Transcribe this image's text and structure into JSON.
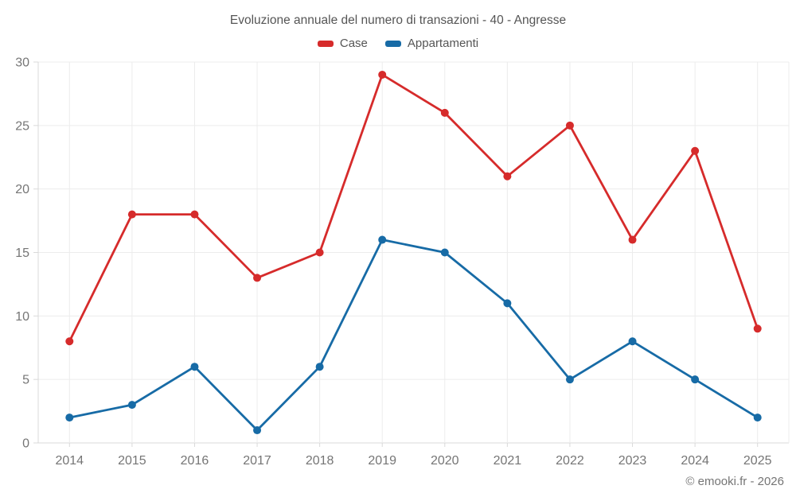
{
  "page": {
    "footer": "© emooki.fr - 2026"
  },
  "chart_data": {
    "type": "line",
    "title": "Evoluzione annuale del numero di transazioni - 40 - Angresse",
    "categories": [
      "2014",
      "2015",
      "2016",
      "2017",
      "2018",
      "2019",
      "2020",
      "2021",
      "2022",
      "2023",
      "2024",
      "2025"
    ],
    "series": [
      {
        "name": "Case",
        "color": "#d62b2b",
        "values": [
          8,
          18,
          18,
          13,
          15,
          29,
          26,
          21,
          25,
          16,
          23,
          9
        ]
      },
      {
        "name": "Appartamenti",
        "color": "#176ba6",
        "values": [
          2,
          3,
          6,
          1,
          6,
          16,
          15,
          11,
          5,
          8,
          5,
          2
        ]
      }
    ],
    "xlabel": "",
    "ylabel": "",
    "ylim": [
      0,
      30
    ],
    "yticks": [
      0,
      5,
      10,
      15,
      20,
      25,
      30
    ],
    "grid": true,
    "legend_position": "top"
  },
  "theme": {
    "grid_color": "#ececec",
    "axis_color": "#d9d9d9",
    "tick_label_color": "#757575",
    "title_color": "#555555"
  }
}
